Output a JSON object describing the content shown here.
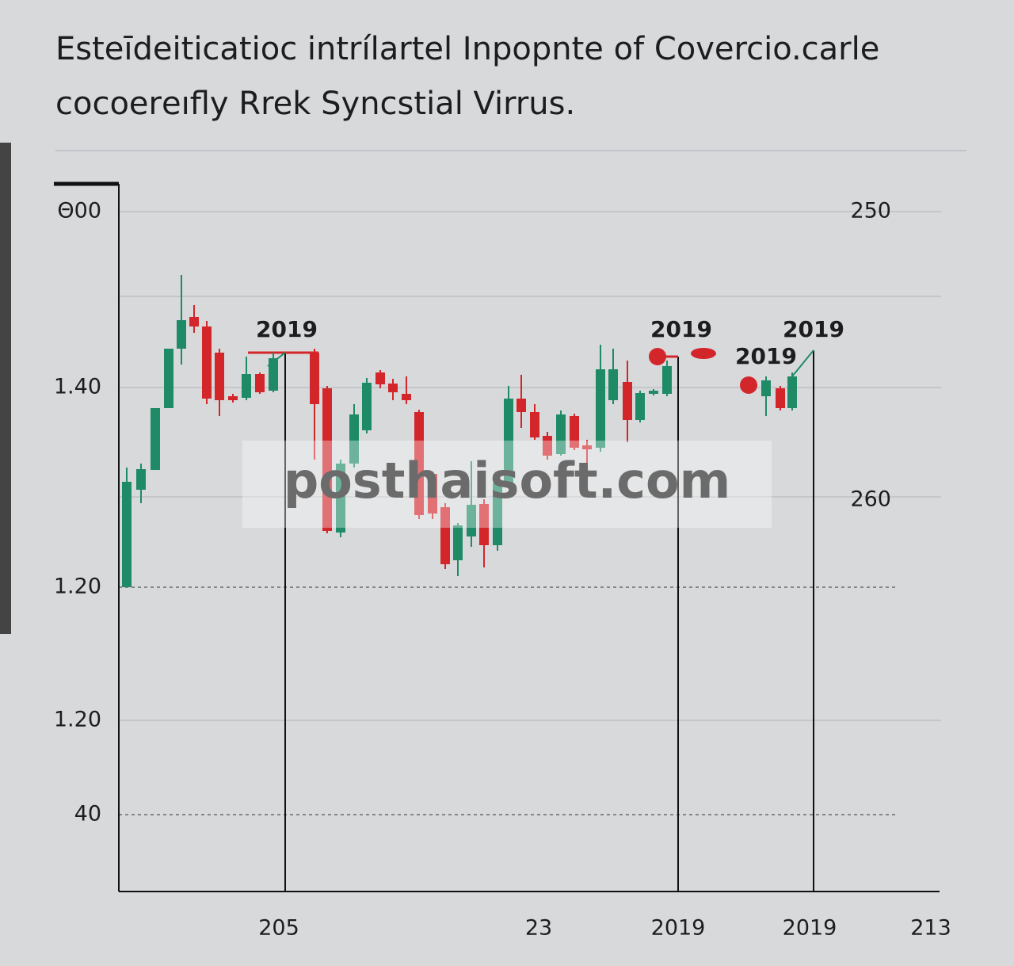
{
  "chart_data": {
    "type": "candlestick",
    "title": [
      "Esteīdeiticatioc intrílartel Inpopnte of Covercio.carle",
      "cocoerеıfly Rrek Syncstial Virrus."
    ],
    "y_axis_labels_left": [
      "Θ00",
      "1.40",
      "1.20",
      "1.20",
      "40"
    ],
    "y_axis_labels_right": [
      "250",
      "260"
    ],
    "x_axis_labels": [
      "205",
      "23",
      "2019",
      "2019",
      "213"
    ],
    "annotations": [
      "2019",
      "2019",
      "2019",
      "2019"
    ],
    "watermark": "posthaisoft.com",
    "up_color": "#1f8a66",
    "down_color": "#d3262b",
    "xlim": [
      0,
      1035
    ],
    "ylim": [
      0,
      895
    ],
    "x": [
      10,
      28,
      46,
      63,
      79,
      95,
      111,
      127,
      144,
      161,
      178,
      195,
      247,
      263,
      280,
      297,
      313,
      330,
      346,
      363,
      379,
      396,
      412,
      428,
      445,
      461,
      478,
      492,
      508,
      525,
      541,
      558,
      575,
      591,
      608,
      624,
      642,
      658,
      675,
      692,
      817,
      835,
      850
    ],
    "open": [
      384,
      507,
      532,
      610,
      685,
      725,
      713,
      680,
      625,
      623,
      653,
      632,
      680,
      635,
      453,
      540,
      582,
      655,
      641,
      628,
      605,
      527,
      485,
      418,
      448,
      489,
      437,
      515,
      622,
      605,
      575,
      552,
      600,
      563,
      560,
      620,
      643,
      595,
      628,
      628,
      625,
      635,
      610
    ],
    "high": [
      535,
      540,
      610,
      685,
      778,
      740,
      720,
      685,
      628,
      675,
      655,
      680,
      685,
      638,
      545,
      615,
      648,
      658,
      647,
      650,
      608,
      530,
      490,
      465,
      543,
      495,
      525,
      638,
      652,
      615,
      580,
      607,
      603,
      570,
      690,
      685,
      670,
      632,
      634,
      670,
      650,
      638,
      655
    ],
    "low": [
      384,
      490,
      532,
      610,
      665,
      705,
      615,
      600,
      617,
      620,
      628,
      630,
      545,
      452,
      447,
      535,
      578,
      635,
      620,
      615,
      470,
      470,
      407,
      398,
      435,
      409,
      430,
      510,
      585,
      570,
      545,
      550,
      557,
      530,
      555,
      615,
      567,
      592,
      626,
      625,
      600,
      607,
      607
    ],
    "close": [
      517,
      533,
      610,
      685,
      721,
      713,
      622,
      620,
      620,
      653,
      630,
      673,
      615,
      455,
      540,
      602,
      642,
      640,
      630,
      620,
      475,
      477,
      413,
      462,
      488,
      437,
      515,
      622,
      605,
      573,
      550,
      602,
      560,
      558,
      659,
      659,
      595,
      629,
      632,
      663,
      645,
      610,
      650
    ]
  }
}
